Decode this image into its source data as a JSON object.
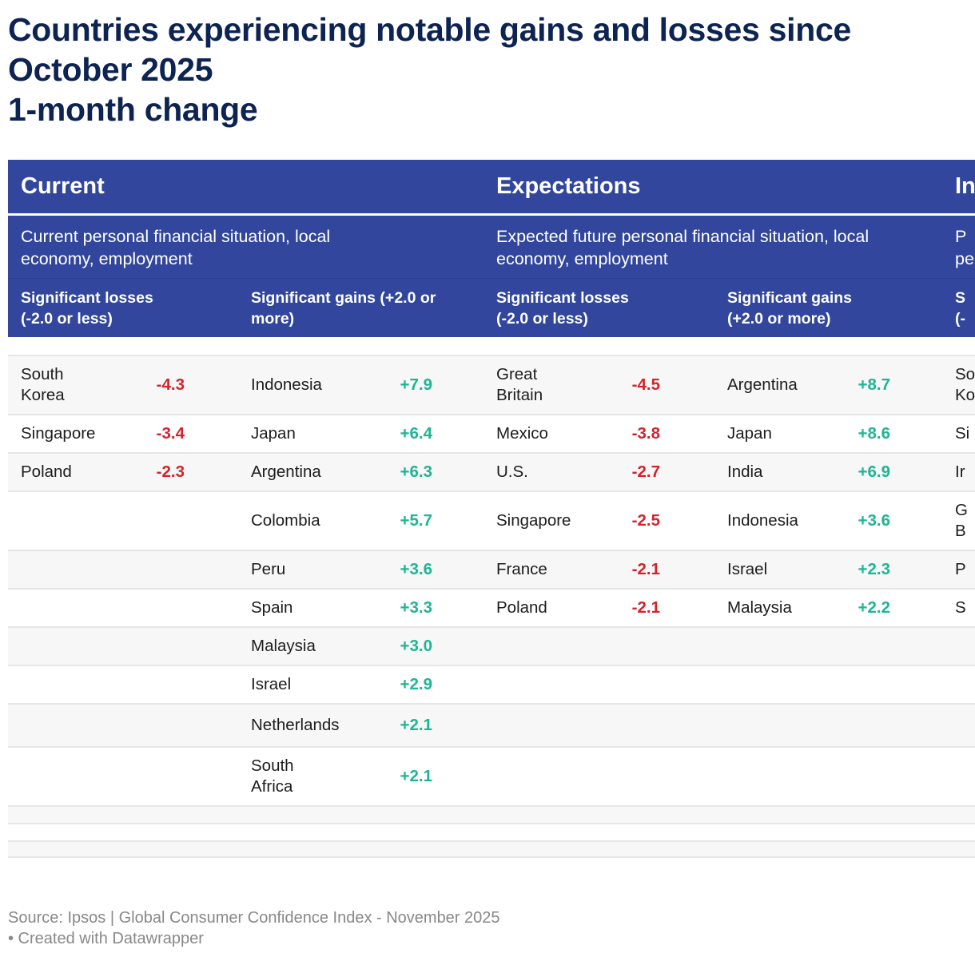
{
  "title": {
    "lines": [
      "Countries experiencing notable gains and losses since",
      "October 2025",
      "1-month change"
    ]
  },
  "colors": {
    "title": "#0d2352",
    "header_bg": "#31469c",
    "loss": "#d3222a",
    "gain": "#1db594",
    "stripe": "#f7f7f7",
    "footer": "#888888"
  },
  "sections": [
    {
      "title": "Current",
      "description": "Current personal financial situation, local economy, employment",
      "losses_header": "Significant losses (-2.0 or less)",
      "gains_header": "Significant gains (+2.0 or more)",
      "losses": [
        {
          "country": "South Korea",
          "value": "-4.3"
        },
        {
          "country": "Singapore",
          "value": "-3.4"
        },
        {
          "country": "Poland",
          "value": "-2.3"
        }
      ],
      "gains": [
        {
          "country": "Indonesia",
          "value": "+7.9"
        },
        {
          "country": "Japan",
          "value": "+6.4"
        },
        {
          "country": "Argentina",
          "value": "+6.3"
        },
        {
          "country": "Colombia",
          "value": "+5.7"
        },
        {
          "country": "Peru",
          "value": "+3.6"
        },
        {
          "country": "Spain",
          "value": "+3.3"
        },
        {
          "country": "Malaysia",
          "value": "+3.0"
        },
        {
          "country": "Israel",
          "value": "+2.9"
        },
        {
          "country": "Netherlands",
          "value": "+2.1"
        },
        {
          "country": "South Africa",
          "value": "+2.1"
        }
      ]
    },
    {
      "title": "Expectations",
      "description": "Expected future personal financial situation, local economy, employment",
      "losses_header": "Significant losses (-2.0 or less)",
      "gains_header": "Significant gains (+2.0 or more)",
      "losses": [
        {
          "country": "Great Britain",
          "value": "-4.5"
        },
        {
          "country": "Mexico",
          "value": "-3.8"
        },
        {
          "country": "U.S.",
          "value": "-2.7"
        },
        {
          "country": "Singapore",
          "value": "-2.5"
        },
        {
          "country": "France",
          "value": "-2.1"
        },
        {
          "country": "Poland",
          "value": "-2.1"
        }
      ],
      "gains": [
        {
          "country": "Argentina",
          "value": "+8.7"
        },
        {
          "country": "Japan",
          "value": "+8.6"
        },
        {
          "country": "India",
          "value": "+6.9"
        },
        {
          "country": "Indonesia",
          "value": "+3.6"
        },
        {
          "country": "Israel",
          "value": "+2.3"
        },
        {
          "country": "Malaysia",
          "value": "+2.2"
        }
      ]
    },
    {
      "title": "In",
      "description": "P\npe",
      "losses_header": "S\n(-",
      "losses_truncated": [
        "So\nKo",
        "Si",
        "Ir",
        "G\nB",
        "P",
        "S"
      ]
    }
  ],
  "footer": {
    "source": "Source: Ipsos | Global Consumer Confidence Index - November 2025",
    "credit": "• Created with Datawrapper"
  }
}
